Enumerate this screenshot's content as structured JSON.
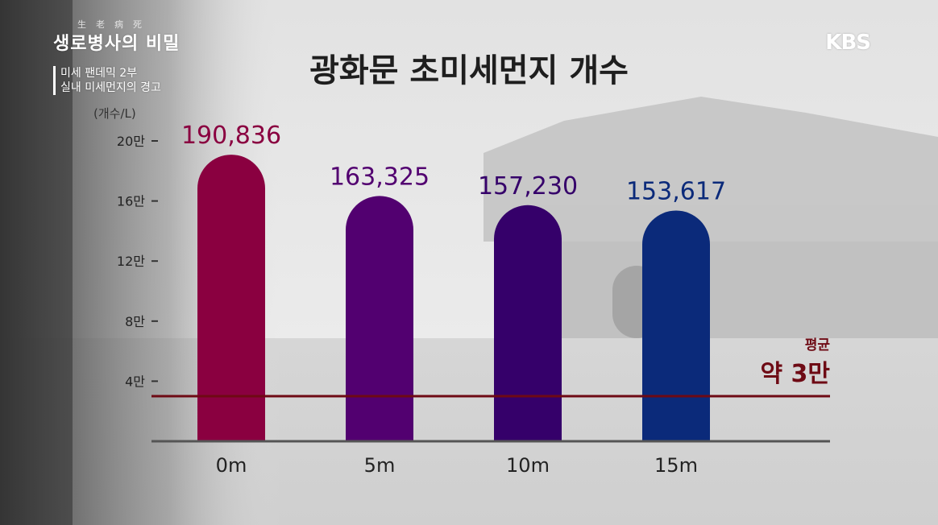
{
  "program": {
    "hanja": "生老病死",
    "title": "생로병사의 비밀",
    "episode_line1": "미세 팬데믹 2부",
    "episode_line2": "실내 미세먼지의 경고"
  },
  "broadcaster": "KBS",
  "colors": {
    "bar_0m": "#8a0040",
    "bar_5m": "#520070",
    "bar_10m": "#35006a",
    "bar_15m": "#0b2a7a",
    "average_line": "#6e0a14",
    "axis": "#555555"
  },
  "chart_data": {
    "type": "bar",
    "title": "광화문 초미세먼지 개수",
    "unit_label": "(개수/L)",
    "categories": [
      "0m",
      "5m",
      "10m",
      "15m"
    ],
    "values": [
      190836,
      163325,
      157230,
      153617
    ],
    "value_labels": [
      "190,836",
      "163,325",
      "157,230",
      "153,617"
    ],
    "ylim": [
      0,
      200000
    ],
    "y_ticks": [
      {
        "value": 200000,
        "label": "20만"
      },
      {
        "value": 160000,
        "label": "16만"
      },
      {
        "value": 120000,
        "label": "12만"
      },
      {
        "value": 80000,
        "label": "8만"
      },
      {
        "value": 40000,
        "label": "4만"
      }
    ],
    "reference_line": {
      "value": 30000,
      "label_small": "평균",
      "label_big": "약 3만"
    },
    "grid": false
  }
}
